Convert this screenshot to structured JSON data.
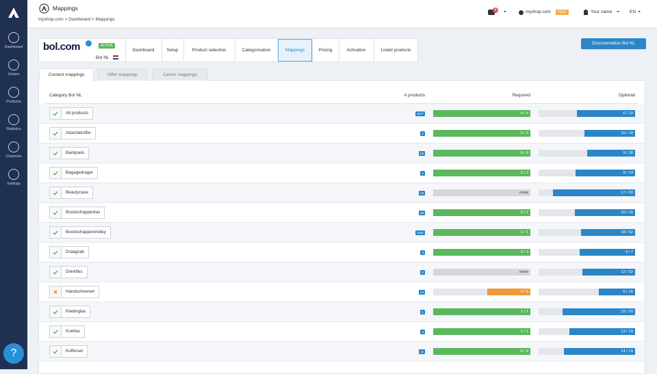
{
  "sidebar": {
    "items": [
      "Dashboard",
      "Orders",
      "Products",
      "Statistics",
      "Channels",
      "Settings"
    ],
    "help": "?"
  },
  "header": {
    "title": "Mappings",
    "breadcrumb": "myshop.com > Dashboard > Mappings",
    "notifications": "4",
    "shop": "myshop.com",
    "shop_badge": "TEST",
    "user": "Your name",
    "language": "EN"
  },
  "channel": {
    "logo": "bol.com",
    "status": "ACTIVE",
    "name": "Bol NL",
    "steps": [
      "Dashboard",
      "Setup",
      "Product selection",
      "Categorisation",
      "Mappings",
      "Pricing",
      "Activation",
      "Listed products"
    ],
    "active_step": 4,
    "documentation": "Documentation Bol NL"
  },
  "tabs": {
    "items": [
      "Content mappings",
      "Offer mappings",
      "Carrier mappings"
    ],
    "active": 0
  },
  "table": {
    "columns": [
      "Category Bol NL",
      "# products",
      "Required",
      "Optional"
    ],
    "rows": [
      {
        "status": "ok",
        "name": "All products",
        "count": "4877",
        "required": {
          "label": "4 / 4",
          "done": 4,
          "total": 4
        },
        "optional": {
          "label": "6 / 10",
          "done": 6,
          "total": 10
        }
      },
      {
        "status": "ok",
        "name": "Attachékoffer",
        "count": "1",
        "required": {
          "label": "5 / 5",
          "done": 5,
          "total": 5
        },
        "optional": {
          "label": "10 / 19",
          "done": 10,
          "total": 19
        }
      },
      {
        "status": "ok",
        "name": "Backpack",
        "count": "26",
        "required": {
          "label": "8 / 8",
          "done": 8,
          "total": 8
        },
        "optional": {
          "label": "9 / 18",
          "done": 9,
          "total": 18
        }
      },
      {
        "status": "ok",
        "name": "Bagagedrager",
        "count": "1",
        "required": {
          "label": "2 / 2",
          "done": 2,
          "total": 2
        },
        "optional": {
          "label": "8 / 13",
          "done": 8,
          "total": 13
        }
      },
      {
        "status": "ok",
        "name": "Beautycase",
        "count": "16",
        "required": {
          "label": "none"
        },
        "optional": {
          "label": "17 / 20",
          "done": 17,
          "total": 20
        }
      },
      {
        "status": "ok",
        "name": "Boodschappentas",
        "count": "38",
        "required": {
          "label": "2 / 2",
          "done": 2,
          "total": 2
        },
        "optional": {
          "label": "10 / 16",
          "done": 10,
          "total": 16
        }
      },
      {
        "status": "ok",
        "name": "Boodschappentrolley",
        "count": "1937",
        "required": {
          "label": "1 / 1",
          "done": 1,
          "total": 1
        },
        "optional": {
          "label": "18 / 32",
          "done": 18,
          "total": 32
        }
      },
      {
        "status": "ok",
        "name": "Draagzak",
        "count": "3",
        "required": {
          "label": "3 / 3",
          "done": 3,
          "total": 3
        },
        "optional": {
          "label": "4 / 7",
          "done": 4,
          "total": 7
        }
      },
      {
        "status": "ok",
        "name": "Drinkfles",
        "count": "2",
        "required": {
          "label": "none"
        },
        "optional": {
          "label": "12 / 22",
          "done": 12,
          "total": 22
        }
      },
      {
        "status": "error",
        "name": "Handschoenen",
        "count": "24",
        "required": {
          "label": "4 / 9",
          "done": 4,
          "total": 9
        },
        "optional": {
          "label": "6 / 16",
          "done": 6,
          "total": 16
        }
      },
      {
        "status": "ok",
        "name": "Kledingtas",
        "count": "1",
        "required": {
          "label": "1 / 1",
          "done": 1,
          "total": 1
        },
        "optional": {
          "label": "15 / 20",
          "done": 15,
          "total": 20
        }
      },
      {
        "status": "ok",
        "name": "Koeltas",
        "count": "3",
        "required": {
          "label": "1 / 1",
          "done": 1,
          "total": 1
        },
        "optional": {
          "label": "13 / 19",
          "done": 13,
          "total": 19
        }
      },
      {
        "status": "ok",
        "name": "Kofferset",
        "count": "14",
        "required": {
          "label": "8 / 8",
          "done": 8,
          "total": 8
        },
        "optional": {
          "label": "14 / 19",
          "done": 14,
          "total": 19
        }
      }
    ]
  }
}
